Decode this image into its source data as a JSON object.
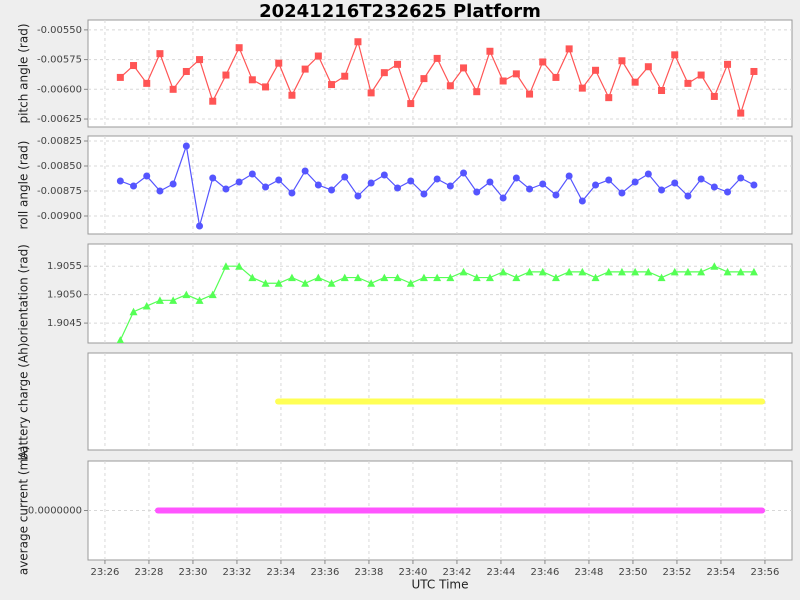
{
  "title": "20241216T232625 Platform",
  "xlabel": "UTC Time",
  "chart_data": [
    {
      "type": "line",
      "ylabel": "pitch angle (rad)",
      "marker": "square",
      "color": "#ff5555",
      "ylim": [
        -0.006317,
        -0.005417
      ],
      "yticks": [
        {
          "value": -0.0055,
          "label": "-0.00550"
        },
        {
          "value": -0.00575,
          "label": "-0.00575"
        },
        {
          "value": -0.006,
          "label": "-0.00600"
        },
        {
          "value": -0.00625,
          "label": "-0.00625"
        }
      ],
      "x": [
        1406.7,
        1407.3,
        1407.9,
        1408.5,
        1409.1,
        1409.7,
        1410.3,
        1410.9,
        1411.5,
        1412.1,
        1412.7,
        1413.3,
        1413.9,
        1414.5,
        1415.1,
        1415.7,
        1416.3,
        1416.9,
        1417.5,
        1418.1,
        1418.7,
        1419.3,
        1419.9,
        1420.5,
        1421.1,
        1421.7,
        1422.3,
        1422.9,
        1423.5,
        1424.1,
        1424.7,
        1425.3,
        1425.9,
        1426.5,
        1427.1,
        1427.7,
        1428.3,
        1428.9,
        1429.5,
        1430.1,
        1430.7,
        1431.3,
        1431.9,
        1432.5,
        1433.1,
        1433.7,
        1434.3,
        1434.9,
        1435.5
      ],
      "values": [
        -0.0059,
        -0.0058,
        -0.00595,
        -0.0057,
        -0.006,
        -0.00585,
        -0.00575,
        -0.0061,
        -0.00588,
        -0.00565,
        -0.00592,
        -0.00598,
        -0.00578,
        -0.00605,
        -0.00583,
        -0.00572,
        -0.00596,
        -0.00589,
        -0.0056,
        -0.00603,
        -0.00586,
        -0.00579,
        -0.00612,
        -0.00591,
        -0.00574,
        -0.00597,
        -0.00582,
        -0.00602,
        -0.00568,
        -0.00593,
        -0.00587,
        -0.00604,
        -0.00577,
        -0.0059,
        -0.00566,
        -0.00599,
        -0.00584,
        -0.00607,
        -0.00576,
        -0.00594,
        -0.00581,
        -0.00601,
        -0.00571,
        -0.00595,
        -0.00588,
        -0.00606,
        -0.00579,
        -0.0062,
        -0.00585
      ]
    },
    {
      "type": "line",
      "ylabel": "roll angle (rad)",
      "marker": "circle",
      "color": "#5555ff",
      "ylim": [
        -0.00918,
        -0.0082
      ],
      "yticks": [
        {
          "value": -0.00825,
          "label": "-0.00825"
        },
        {
          "value": -0.0085,
          "label": "-0.00850"
        },
        {
          "value": -0.00875,
          "label": "-0.00875"
        },
        {
          "value": -0.009,
          "label": "-0.00900"
        }
      ],
      "x": [
        1406.7,
        1407.3,
        1407.9,
        1408.5,
        1409.1,
        1409.7,
        1410.3,
        1410.9,
        1411.5,
        1412.1,
        1412.7,
        1413.3,
        1413.9,
        1414.5,
        1415.1,
        1415.7,
        1416.3,
        1416.9,
        1417.5,
        1418.1,
        1418.7,
        1419.3,
        1419.9,
        1420.5,
        1421.1,
        1421.7,
        1422.3,
        1422.9,
        1423.5,
        1424.1,
        1424.7,
        1425.3,
        1425.9,
        1426.5,
        1427.1,
        1427.7,
        1428.3,
        1428.9,
        1429.5,
        1430.1,
        1430.7,
        1431.3,
        1431.9,
        1432.5,
        1433.1,
        1433.7,
        1434.3,
        1434.9,
        1435.5
      ],
      "values": [
        -0.00865,
        -0.0087,
        -0.0086,
        -0.00875,
        -0.00868,
        -0.0083,
        -0.0091,
        -0.00862,
        -0.00873,
        -0.00866,
        -0.00858,
        -0.00871,
        -0.00864,
        -0.00877,
        -0.00855,
        -0.00869,
        -0.00874,
        -0.00861,
        -0.0088,
        -0.00867,
        -0.00859,
        -0.00872,
        -0.00865,
        -0.00878,
        -0.00863,
        -0.0087,
        -0.00857,
        -0.00876,
        -0.00866,
        -0.00882,
        -0.00862,
        -0.00873,
        -0.00868,
        -0.00879,
        -0.0086,
        -0.00885,
        -0.00869,
        -0.00864,
        -0.00877,
        -0.00866,
        -0.00858,
        -0.00874,
        -0.00867,
        -0.0088,
        -0.00863,
        -0.00871,
        -0.00876,
        -0.00862,
        -0.00869
      ]
    },
    {
      "type": "line",
      "ylabel": "orientation (rad)",
      "marker": "triangle",
      "color": "#55ff55",
      "ylim": [
        1.90415,
        1.90589
      ],
      "yticks": [
        {
          "value": 1.9055,
          "label": "1.9055"
        },
        {
          "value": 1.905,
          "label": "1.9050"
        },
        {
          "value": 1.9045,
          "label": "1.9045"
        }
      ],
      "x": [
        1406.7,
        1407.3,
        1407.9,
        1408.5,
        1409.1,
        1409.7,
        1410.3,
        1410.9,
        1411.5,
        1412.1,
        1412.7,
        1413.3,
        1413.9,
        1414.5,
        1415.1,
        1415.7,
        1416.3,
        1416.9,
        1417.5,
        1418.1,
        1418.7,
        1419.3,
        1419.9,
        1420.5,
        1421.1,
        1421.7,
        1422.3,
        1422.9,
        1423.5,
        1424.1,
        1424.7,
        1425.3,
        1425.9,
        1426.5,
        1427.1,
        1427.7,
        1428.3,
        1428.9,
        1429.5,
        1430.1,
        1430.7,
        1431.3,
        1431.9,
        1432.5,
        1433.1,
        1433.7,
        1434.3,
        1434.9,
        1435.5
      ],
      "values": [
        1.9042,
        1.9047,
        1.9048,
        1.9049,
        1.9049,
        1.905,
        1.9049,
        1.905,
        1.9055,
        1.9055,
        1.9053,
        1.9052,
        1.9052,
        1.9053,
        1.9052,
        1.9053,
        1.9052,
        1.9053,
        1.9053,
        1.9052,
        1.9053,
        1.9053,
        1.9052,
        1.9053,
        1.9053,
        1.9053,
        1.9054,
        1.9053,
        1.9053,
        1.9054,
        1.9053,
        1.9054,
        1.9054,
        1.9053,
        1.9054,
        1.9054,
        1.9053,
        1.9054,
        1.9054,
        1.9054,
        1.9054,
        1.9053,
        1.9054,
        1.9054,
        1.9054,
        1.9055,
        1.9054,
        1.9054,
        1.9054
      ]
    },
    {
      "type": "line",
      "ylabel": "battery charge (Ah)",
      "color": "#ffff55",
      "x": [
        1413.87,
        1435.87
      ],
      "values": [
        0,
        0
      ]
    },
    {
      "type": "line",
      "ylabel": "average current (mA)",
      "color": "#ff55ff",
      "yticks": [
        {
          "value": 0,
          "label": "0.0000000"
        }
      ],
      "x": [
        1408.41,
        1435.87
      ],
      "values": [
        0,
        0
      ],
      "xlim": [
        1405.23,
        1437.23
      ],
      "xticks": [
        {
          "value": 1406,
          "label": "23:26"
        },
        {
          "value": 1408,
          "label": "23:28"
        },
        {
          "value": 1410,
          "label": "23:30"
        },
        {
          "value": 1412,
          "label": "23:32"
        },
        {
          "value": 1414,
          "label": "23:34"
        },
        {
          "value": 1416,
          "label": "23:36"
        },
        {
          "value": 1418,
          "label": "23:38"
        },
        {
          "value": 1420,
          "label": "23:40"
        },
        {
          "value": 1422,
          "label": "23:42"
        },
        {
          "value": 1424,
          "label": "23:44"
        },
        {
          "value": 1426,
          "label": "23:46"
        },
        {
          "value": 1428,
          "label": "23:48"
        },
        {
          "value": 1430,
          "label": "23:50"
        },
        {
          "value": 1432,
          "label": "23:52"
        },
        {
          "value": 1434,
          "label": "23:54"
        },
        {
          "value": 1436,
          "label": "23:56"
        }
      ]
    }
  ]
}
